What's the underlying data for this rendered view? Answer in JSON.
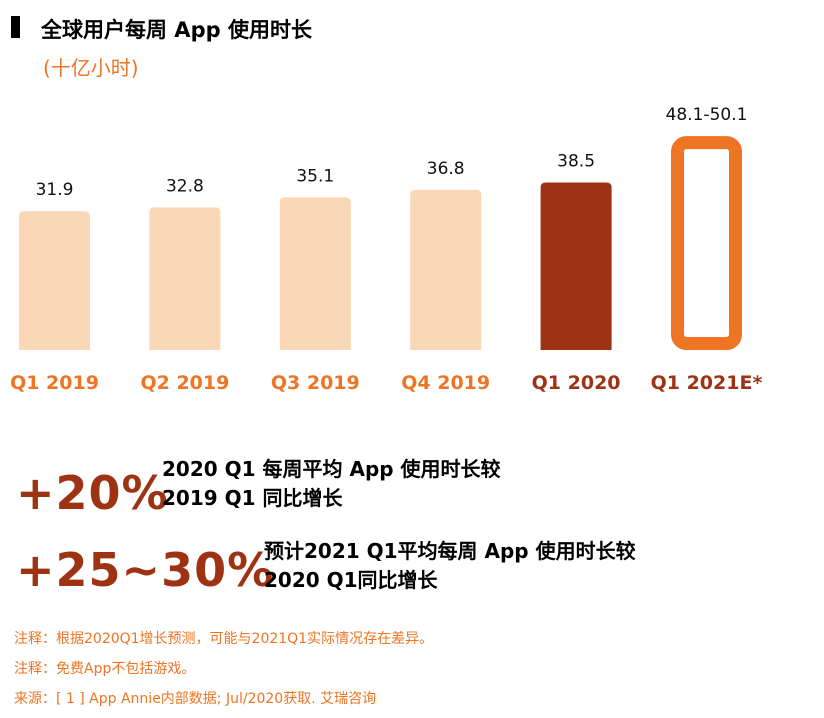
{
  "header": {
    "title": "全球用户每周 App 使用时长",
    "subtitle": "(十亿小时)"
  },
  "colors": {
    "past": "#fad7b6",
    "current": "#9e3314",
    "forecast": "#ee7523",
    "label_orange": "#ee7523",
    "label_dark": "#9e3314"
  },
  "chart_data": {
    "type": "bar",
    "title": "全球用户每周 App 使用时长",
    "subtitle": "(十亿小时)",
    "xlabel": "",
    "ylabel": "",
    "ylim": [
      0,
      50.1
    ],
    "grid": false,
    "categories": [
      "Q1 2019",
      "Q2 2019",
      "Q3 2019",
      "Q4 2019",
      "Q1 2020",
      "Q1 2021E*"
    ],
    "values": [
      31.9,
      32.8,
      35.1,
      36.8,
      38.5,
      [
        48.1,
        50.1
      ]
    ],
    "value_labels": [
      "31.9",
      "32.8",
      "35.1",
      "36.8",
      "38.5",
      "48.1-50.1"
    ],
    "styles": [
      "past",
      "past",
      "past",
      "past",
      "current",
      "forecast"
    ]
  },
  "stats": [
    {
      "value": "+20%",
      "line1": "2020 Q1 每周平均 App 使用时长较",
      "line2": "2019 Q1 同比增长"
    },
    {
      "value": "+25~30%",
      "line1": "预计2021 Q1平均每周 App 使用时长较",
      "line2": "2020 Q1同比增长"
    }
  ],
  "notes": [
    "注释：根据2020Q1增长预测，可能与2021Q1实际情况存在差异。",
    "注释：免费App不包括游戏。",
    "来源：[ 1 ] App Annie内部数据; Jul/2020获取. 艾瑞咨询"
  ]
}
